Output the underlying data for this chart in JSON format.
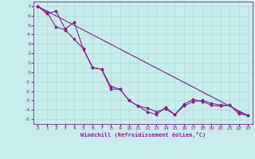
{
  "xlabel": "Windchill (Refroidissement éolien,°C)",
  "bg_color": "#c8ecec",
  "grid_color": "#b0d8d8",
  "line_color": "#882288",
  "xlim": [
    -0.5,
    23.5
  ],
  "ylim": [
    -5.5,
    7.5
  ],
  "xticks": [
    0,
    1,
    2,
    3,
    4,
    5,
    6,
    7,
    8,
    9,
    10,
    11,
    12,
    13,
    14,
    15,
    16,
    17,
    18,
    19,
    20,
    21,
    22,
    23
  ],
  "yticks": [
    -5,
    -4,
    -3,
    -2,
    -1,
    0,
    1,
    2,
    3,
    4,
    5,
    6,
    7
  ],
  "line1_x": [
    0,
    1,
    2,
    3,
    4,
    5,
    6,
    7,
    8,
    9,
    10,
    11,
    12,
    13,
    14,
    15,
    16,
    17,
    18,
    19,
    20,
    21,
    22,
    23
  ],
  "line1_y": [
    7.0,
    6.2,
    6.5,
    4.6,
    5.3,
    2.4,
    0.5,
    0.3,
    -1.8,
    -1.8,
    -3.0,
    -3.6,
    -4.2,
    -4.5,
    -3.7,
    -4.5,
    -3.4,
    -2.9,
    -3.1,
    -3.5,
    -3.6,
    -3.5,
    -4.4,
    -4.6
  ],
  "line2_x": [
    0,
    23
  ],
  "line2_y": [
    7.0,
    -4.6
  ],
  "line3_x": [
    0,
    1,
    2,
    3,
    4,
    5,
    6,
    7,
    8,
    9,
    10,
    11,
    12,
    13,
    14,
    15,
    16,
    17,
    18,
    19,
    20,
    21,
    22,
    23
  ],
  "line3_y": [
    7.0,
    6.4,
    4.8,
    4.5,
    3.5,
    2.5,
    0.5,
    0.3,
    -1.5,
    -1.8,
    -3.0,
    -3.6,
    -3.8,
    -4.2,
    -3.9,
    -4.5,
    -3.6,
    -3.1,
    -3.0,
    -3.3,
    -3.5,
    -3.5,
    -4.2,
    -4.6
  ]
}
